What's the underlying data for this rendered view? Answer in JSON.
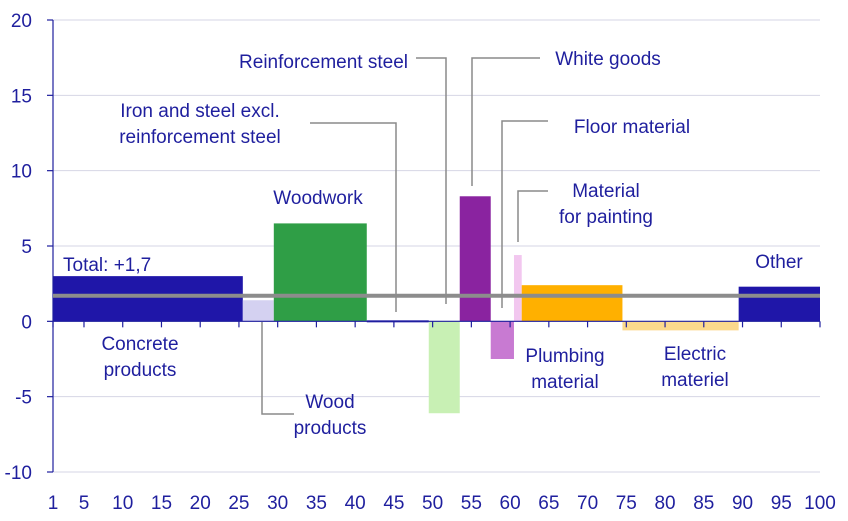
{
  "chart_data": {
    "type": "bar",
    "xlim": [
      1,
      100
    ],
    "ylim": [
      -10,
      20
    ],
    "x_ticks": [
      "1",
      "5",
      "10",
      "15",
      "20",
      "25",
      "30",
      "35",
      "40",
      "45",
      "50",
      "55",
      "60",
      "65",
      "70",
      "75",
      "80",
      "85",
      "90",
      "95",
      "100"
    ],
    "y_ticks": [
      "20",
      "15",
      "10",
      "5",
      "0",
      "-5",
      "-10"
    ],
    "total": {
      "label": "Total: +1,7",
      "value": 1.7
    },
    "bars": [
      {
        "name": "Concrete products",
        "label_lines": [
          "Concrete",
          "products"
        ],
        "x_start": 1,
        "x_end": 25.5,
        "value": 3.0,
        "color": "#1f16a8"
      },
      {
        "name": "Wood products",
        "label_lines": [
          "Wood",
          "products"
        ],
        "x_start": 25.5,
        "x_end": 29.5,
        "value": 1.4,
        "color": "#d4d1f1"
      },
      {
        "name": "Woodwork",
        "label_lines": [
          "Woodwork"
        ],
        "x_start": 29.5,
        "x_end": 41.5,
        "value": 6.5,
        "color": "#2f9e46"
      },
      {
        "name": "Iron and steel excl. reinforcement steel",
        "label_lines": [
          "Iron and steel excl.",
          "reinforcement steel"
        ],
        "x_start": 41.5,
        "x_end": 49.5,
        "value": 0.0,
        "color": "#1f16a8"
      },
      {
        "name": "Reinforcement steel",
        "label_lines": [
          "Reinforcement steel"
        ],
        "x_start": 49.5,
        "x_end": 53.5,
        "value": -6.1,
        "color": "#c8f0b4"
      },
      {
        "name": "White goods",
        "label_lines": [
          "White goods"
        ],
        "x_start": 53.5,
        "x_end": 57.5,
        "value": 8.3,
        "color": "#8a23a0"
      },
      {
        "name": "Floor material",
        "label_lines": [
          "Floor material"
        ],
        "x_start": 57.5,
        "x_end": 60.5,
        "value": -2.5,
        "color": "#c87ad2"
      },
      {
        "name": "Material for painting",
        "label_lines": [
          "Material",
          "for painting"
        ],
        "x_start": 60.5,
        "x_end": 61.5,
        "value": 4.4,
        "color": "#f2c7ef"
      },
      {
        "name": "Plumbing material",
        "label_lines": [
          "Plumbing",
          "material"
        ],
        "x_start": 61.5,
        "x_end": 74.5,
        "value": 2.4,
        "color": "#ffb000"
      },
      {
        "name": "Electric materiel",
        "label_lines": [
          "Electric",
          "materiel"
        ],
        "x_start": 74.5,
        "x_end": 89.5,
        "value": -0.6,
        "color": "#fbd98c"
      },
      {
        "name": "Other",
        "label_lines": [
          "Other"
        ],
        "x_start": 89.5,
        "x_end": 100,
        "value": 2.3,
        "color": "#1f16a8"
      }
    ],
    "colors": {
      "text": "#1f1f9e",
      "grid": "#d6d6e4",
      "total_line": "#8c8c8c",
      "leader": "#8a8a8a"
    }
  }
}
